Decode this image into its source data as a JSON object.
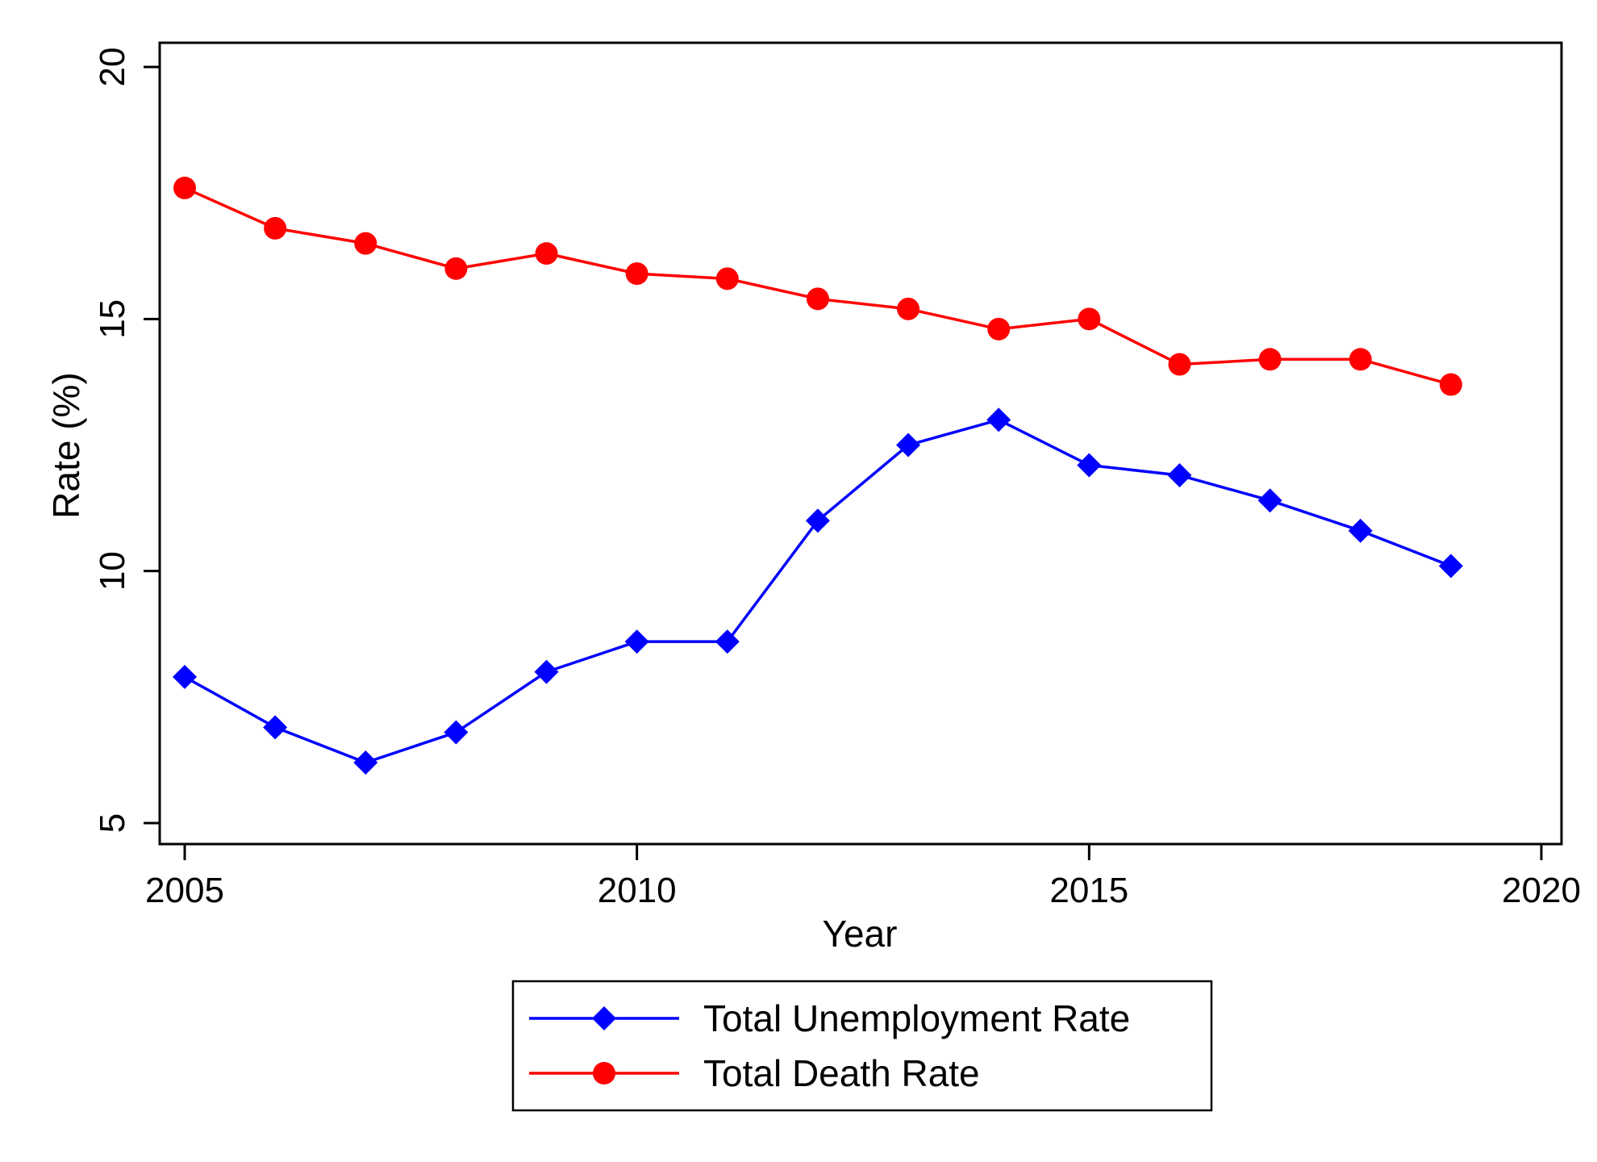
{
  "chart_data": {
    "type": "line",
    "title": "",
    "xlabel": "Year",
    "ylabel": "Rate (%)",
    "xlim": [
      2005,
      2020
    ],
    "ylim": [
      5,
      20
    ],
    "x_ticks": [
      2005,
      2010,
      2015,
      2020
    ],
    "y_ticks": [
      5,
      10,
      15,
      20
    ],
    "x": [
      2005,
      2006,
      2007,
      2008,
      2009,
      2010,
      2011,
      2012,
      2013,
      2014,
      2015,
      2016,
      2017,
      2018,
      2019
    ],
    "series": [
      {
        "name": "Total Unemployment Rate",
        "color": "#0000ff",
        "marker": "diamond",
        "values": [
          7.9,
          6.9,
          6.2,
          6.8,
          8.0,
          8.6,
          8.6,
          11.0,
          12.5,
          13.0,
          12.1,
          11.9,
          11.4,
          10.8,
          10.1
        ]
      },
      {
        "name": "Total Death Rate",
        "color": "#ff0000",
        "marker": "circle",
        "values": [
          17.6,
          16.8,
          16.5,
          16.0,
          16.3,
          15.9,
          15.8,
          15.4,
          15.2,
          14.8,
          15.0,
          14.1,
          14.2,
          14.2,
          13.7
        ]
      }
    ],
    "grid": false,
    "legend_position": "bottom-center"
  }
}
